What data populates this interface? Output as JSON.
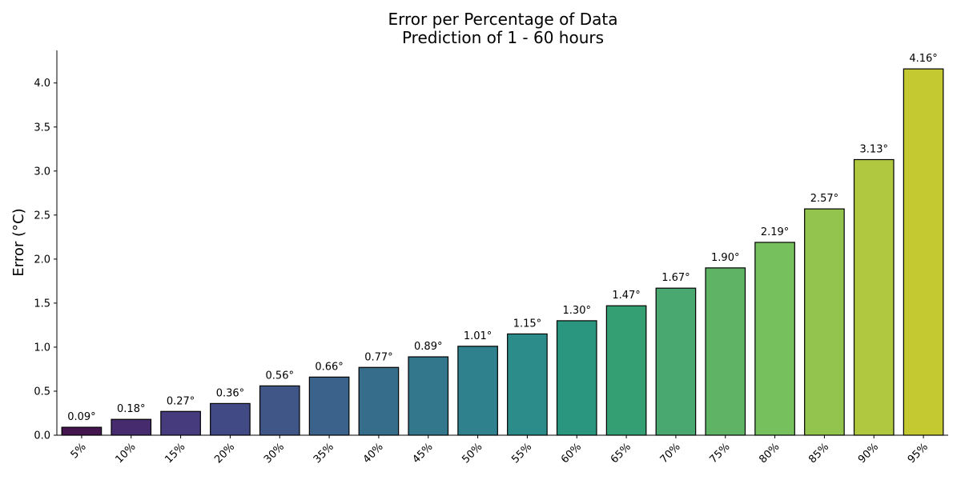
{
  "chart_data": {
    "type": "bar",
    "title": "Error per Percentage of Data",
    "subtitle": "Prediction of 1 - 60 hours",
    "xlabel": "",
    "ylabel": "Error (°C)",
    "ylim": [
      0,
      4.37
    ],
    "yticks": [
      "0.0",
      "0.5",
      "1.0",
      "1.5",
      "2.0",
      "2.5",
      "3.0",
      "3.5",
      "4.0"
    ],
    "ytick_values": [
      0,
      0.5,
      1.0,
      1.5,
      2.0,
      2.5,
      3.0,
      3.5,
      4.0
    ],
    "grid": false,
    "categories": [
      "5%",
      "10%",
      "15%",
      "20%",
      "30%",
      "35%",
      "40%",
      "45%",
      "50%",
      "55%",
      "60%",
      "65%",
      "70%",
      "75%",
      "80%",
      "85%",
      "90%",
      "95%"
    ],
    "values": [
      0.09,
      0.18,
      0.27,
      0.36,
      0.56,
      0.66,
      0.77,
      0.89,
      1.01,
      1.15,
      1.3,
      1.47,
      1.67,
      1.9,
      2.19,
      2.57,
      3.13,
      4.16
    ],
    "data_labels": [
      "0.09°",
      "0.18°",
      "0.27°",
      "0.36°",
      "0.56°",
      "0.66°",
      "0.77°",
      "0.89°",
      "1.01°",
      "1.15°",
      "1.30°",
      "1.47°",
      "1.67°",
      "1.90°",
      "2.19°",
      "2.57°",
      "3.13°",
      "4.16°"
    ],
    "colors": [
      "#44154f",
      "#472b6f",
      "#463c7d",
      "#414a84",
      "#3f5686",
      "#3b628a",
      "#366d8b",
      "#32778c",
      "#2e818d",
      "#2b8c8a",
      "#2a9680",
      "#359f74",
      "#49a86f",
      "#5fb365",
      "#77c05e",
      "#93c54e",
      "#b0c840",
      "#c5c931"
    ],
    "bar_edge_color": "#000000"
  }
}
